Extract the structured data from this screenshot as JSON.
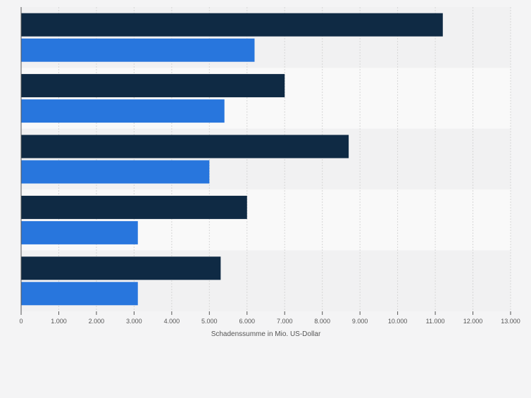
{
  "chart_data": {
    "type": "bar",
    "orientation": "horizontal",
    "categories": [
      "",
      "",
      "",
      "",
      ""
    ],
    "series": [
      {
        "color": "#0f2a44",
        "values": [
          11200,
          7000,
          8700,
          6000,
          5300
        ]
      },
      {
        "color": "#2876dd",
        "values": [
          6200,
          5400,
          5000,
          3100,
          3100
        ]
      }
    ],
    "xlabel": "Schadenssumme in Mio. US-Dollar",
    "xlim": [
      0,
      13000
    ],
    "x_ticks": [
      0,
      1000,
      2000,
      3000,
      4000,
      5000,
      6000,
      7000,
      8000,
      9000,
      10000,
      11000,
      12000,
      13000
    ],
    "x_tick_labels": [
      "0",
      "1.000",
      "2.000",
      "3.000",
      "4.000",
      "5.000",
      "6.000",
      "7.000",
      "8.000",
      "9.000",
      "10.000",
      "11.000",
      "12.000",
      "13.000"
    ],
    "grid": true,
    "band_colors": [
      "#f1f1f2",
      "#f9f9f9"
    ]
  }
}
